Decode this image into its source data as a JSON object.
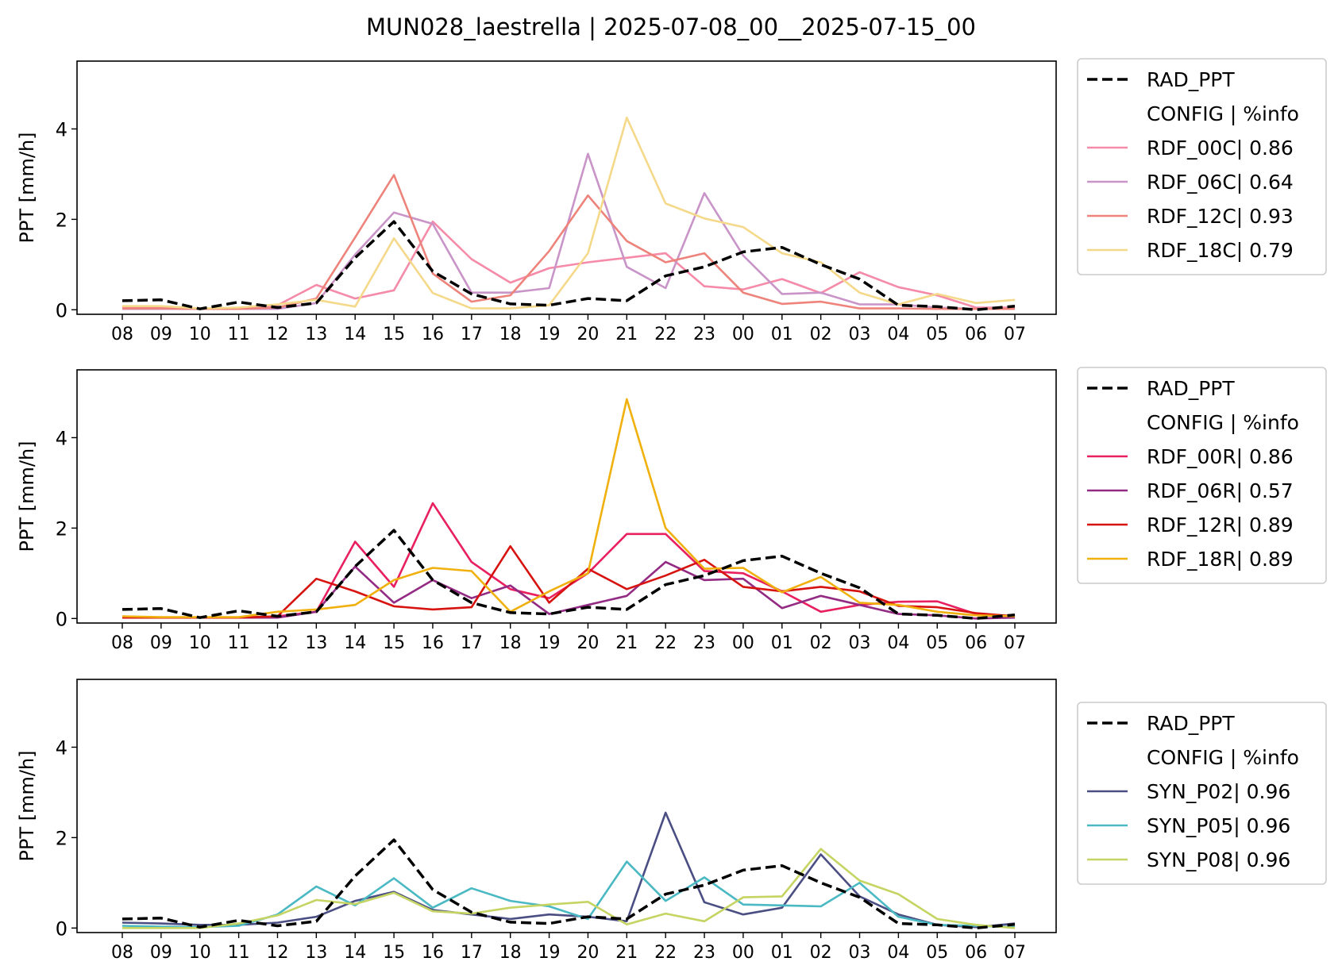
{
  "figure": {
    "title": "MUN028_laestrella | 2025-07-08_00__2025-07-15_00"
  },
  "chart_data": [
    {
      "type": "line",
      "ylabel": "PPT [mm/h]",
      "ylim": [
        -0.1,
        5.5
      ],
      "yticks": [
        0,
        2,
        4
      ],
      "categories": [
        "08",
        "09",
        "10",
        "11",
        "12",
        "13",
        "14",
        "15",
        "16",
        "17",
        "18",
        "19",
        "20",
        "21",
        "22",
        "23",
        "00",
        "01",
        "02",
        "03",
        "04",
        "05",
        "06",
        "07"
      ],
      "legend_header": "CONFIG  | %info",
      "legend_position": "outside right",
      "series": [
        {
          "name": "RAD_PPT",
          "color": "#000000",
          "dashed": true,
          "values": [
            0.2,
            0.22,
            0.02,
            0.17,
            0.05,
            0.15,
            1.15,
            1.95,
            0.85,
            0.35,
            0.13,
            0.1,
            0.25,
            0.2,
            0.75,
            0.95,
            1.28,
            1.38,
            1.0,
            0.68,
            0.1,
            0.07,
            0.0,
            0.08
          ]
        },
        {
          "name": "RDF_00C| 0.86",
          "color": "#f58ba8",
          "values": [
            0.05,
            0.05,
            0.02,
            0.02,
            0.1,
            0.55,
            0.25,
            0.43,
            1.95,
            1.12,
            0.6,
            0.92,
            1.05,
            1.15,
            1.25,
            0.52,
            0.45,
            0.68,
            0.37,
            0.83,
            0.5,
            0.32,
            0.05,
            0.05
          ]
        },
        {
          "name": "RDF_06C| 0.64",
          "color": "#c994c7",
          "values": [
            0.02,
            0.02,
            0.02,
            0.02,
            0.02,
            0.15,
            1.22,
            2.15,
            1.9,
            0.38,
            0.38,
            0.48,
            3.45,
            0.95,
            0.48,
            2.58,
            1.2,
            0.35,
            0.38,
            0.12,
            0.12,
            0.05,
            0.02,
            0.02
          ]
        },
        {
          "name": "RDF_12C| 0.93",
          "color": "#ed837a",
          "values": [
            0.03,
            0.03,
            0.02,
            0.02,
            0.05,
            0.25,
            1.6,
            2.98,
            0.8,
            0.18,
            0.32,
            1.3,
            2.53,
            1.52,
            1.05,
            1.25,
            0.38,
            0.13,
            0.18,
            0.03,
            0.03,
            0.02,
            0.02,
            0.02
          ]
        },
        {
          "name": "RDF_18C| 0.79",
          "color": "#f5d98a",
          "values": [
            0.08,
            0.08,
            0.03,
            0.05,
            0.12,
            0.22,
            0.07,
            1.58,
            0.37,
            0.03,
            0.03,
            0.1,
            1.25,
            4.25,
            2.35,
            2.02,
            1.83,
            1.25,
            1.05,
            0.38,
            0.12,
            0.35,
            0.15,
            0.22
          ]
        }
      ]
    },
    {
      "type": "line",
      "ylabel": "PPT [mm/h]",
      "ylim": [
        -0.1,
        5.5
      ],
      "yticks": [
        0,
        2,
        4
      ],
      "categories": [
        "08",
        "09",
        "10",
        "11",
        "12",
        "13",
        "14",
        "15",
        "16",
        "17",
        "18",
        "19",
        "20",
        "21",
        "22",
        "23",
        "00",
        "01",
        "02",
        "03",
        "04",
        "05",
        "06",
        "07"
      ],
      "legend_header": "CONFIG  | %info",
      "legend_position": "outside right",
      "series": [
        {
          "name": "RAD_PPT",
          "color": "#000000",
          "dashed": true,
          "values": [
            0.2,
            0.22,
            0.02,
            0.17,
            0.05,
            0.15,
            1.15,
            1.95,
            0.85,
            0.35,
            0.13,
            0.1,
            0.25,
            0.2,
            0.75,
            0.95,
            1.28,
            1.38,
            1.0,
            0.68,
            0.1,
            0.07,
            0.0,
            0.08
          ]
        },
        {
          "name": "RDF_00R| 0.86",
          "color": "#e8205f",
          "values": [
            0.02,
            0.02,
            0.02,
            0.02,
            0.05,
            0.15,
            1.7,
            0.7,
            2.55,
            1.25,
            0.65,
            0.45,
            1.0,
            1.87,
            1.87,
            1.05,
            1.0,
            0.6,
            0.15,
            0.3,
            0.37,
            0.38,
            0.1,
            0.05
          ]
        },
        {
          "name": "RDF_06R| 0.57",
          "color": "#932a83",
          "values": [
            0.02,
            0.02,
            0.02,
            0.02,
            0.02,
            0.15,
            1.15,
            0.35,
            0.85,
            0.45,
            0.73,
            0.1,
            0.3,
            0.5,
            1.25,
            0.85,
            0.88,
            0.23,
            0.5,
            0.3,
            0.1,
            0.07,
            0.0,
            0.02
          ]
        },
        {
          "name": "RDF_12R| 0.89",
          "color": "#d7130f",
          "values": [
            0.02,
            0.02,
            0.02,
            0.02,
            0.05,
            0.88,
            0.6,
            0.27,
            0.2,
            0.25,
            1.6,
            0.35,
            1.1,
            0.65,
            0.95,
            1.3,
            0.7,
            0.6,
            0.7,
            0.6,
            0.28,
            0.25,
            0.12,
            0.05
          ]
        },
        {
          "name": "RDF_18R| 0.89",
          "color": "#f0b00e",
          "values": [
            0.05,
            0.03,
            0.03,
            0.03,
            0.15,
            0.2,
            0.3,
            0.85,
            1.12,
            1.05,
            0.15,
            0.6,
            1.0,
            4.85,
            2.0,
            1.1,
            1.12,
            0.58,
            0.92,
            0.35,
            0.3,
            0.15,
            0.07,
            0.05
          ]
        }
      ]
    },
    {
      "type": "line",
      "ylabel": "PPT [mm/h]",
      "ylim": [
        -0.1,
        5.5
      ],
      "yticks": [
        0,
        2,
        4
      ],
      "categories": [
        "08",
        "09",
        "10",
        "11",
        "12",
        "13",
        "14",
        "15",
        "16",
        "17",
        "18",
        "19",
        "20",
        "21",
        "22",
        "23",
        "00",
        "01",
        "02",
        "03",
        "04",
        "05",
        "06",
        "07"
      ],
      "legend_header": "CONFIG  | %info",
      "legend_position": "outside right",
      "series": [
        {
          "name": "RAD_PPT",
          "color": "#000000",
          "dashed": true,
          "values": [
            0.2,
            0.22,
            0.02,
            0.17,
            0.05,
            0.15,
            1.15,
            1.95,
            0.85,
            0.35,
            0.13,
            0.1,
            0.25,
            0.2,
            0.75,
            0.95,
            1.28,
            1.38,
            1.0,
            0.68,
            0.1,
            0.07,
            0.0,
            0.08
          ]
        },
        {
          "name": "SYN_P02| 0.96",
          "color": "#4a4e83",
          "values": [
            0.12,
            0.1,
            0.07,
            0.07,
            0.12,
            0.25,
            0.6,
            0.8,
            0.4,
            0.3,
            0.2,
            0.3,
            0.25,
            0.15,
            2.55,
            0.57,
            0.3,
            0.45,
            1.63,
            0.7,
            0.3,
            0.07,
            0.02,
            0.1
          ]
        },
        {
          "name": "SYN_P05| 0.96",
          "color": "#4ab9c3",
          "values": [
            0.05,
            0.03,
            0.02,
            0.05,
            0.3,
            0.92,
            0.5,
            1.1,
            0.45,
            0.88,
            0.6,
            0.48,
            0.2,
            1.47,
            0.6,
            1.12,
            0.52,
            0.5,
            0.48,
            1.0,
            0.25,
            0.07,
            0.05,
            0.02
          ]
        },
        {
          "name": "SYN_P08| 0.96",
          "color": "#c5d462",
          "values": [
            0.0,
            0.0,
            0.0,
            0.1,
            0.28,
            0.62,
            0.53,
            0.78,
            0.37,
            0.32,
            0.45,
            0.52,
            0.58,
            0.08,
            0.32,
            0.15,
            0.68,
            0.7,
            1.75,
            1.05,
            0.75,
            0.2,
            0.07,
            0.0
          ]
        }
      ]
    }
  ]
}
